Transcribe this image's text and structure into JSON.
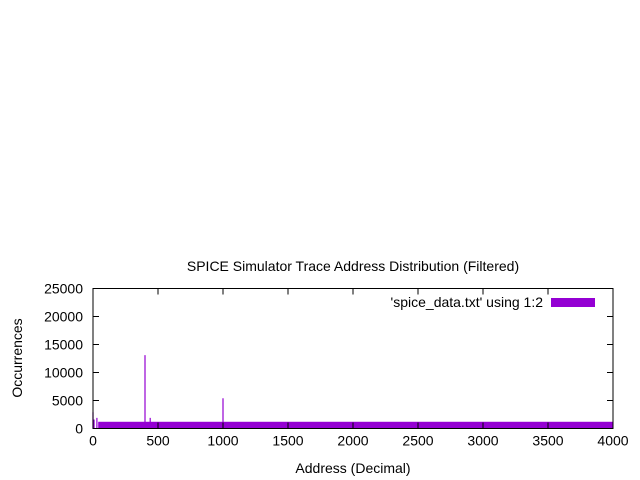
{
  "chart_data": {
    "type": "bar",
    "title": "SPICE Simulator Trace Address Distribution (Filtered)",
    "xlabel": "Address (Decimal)",
    "ylabel": "Occurrences",
    "xlim": [
      0,
      4000
    ],
    "ylim": [
      0,
      25000
    ],
    "xticks": [
      0,
      500,
      1000,
      1500,
      2000,
      2500,
      3000,
      3500,
      4000
    ],
    "yticks": [
      0,
      5000,
      10000,
      15000,
      20000,
      25000
    ],
    "grid": false,
    "legend": {
      "position": "top-right",
      "label": "'spice_data.txt' using 1:2"
    },
    "color": "#9400d3",
    "series": [
      {
        "name": "'spice_data.txt' using 1:2",
        "baseline_band": {
          "x": [
            40,
            4000
          ],
          "value": 1200
        },
        "points": [
          {
            "x": 0,
            "y": 2900
          },
          {
            "x": 8,
            "y": 1600
          },
          {
            "x": 30,
            "y": 1900
          },
          {
            "x": 400,
            "y": 13100
          },
          {
            "x": 440,
            "y": 1900
          },
          {
            "x": 1000,
            "y": 5400
          }
        ]
      }
    ]
  }
}
